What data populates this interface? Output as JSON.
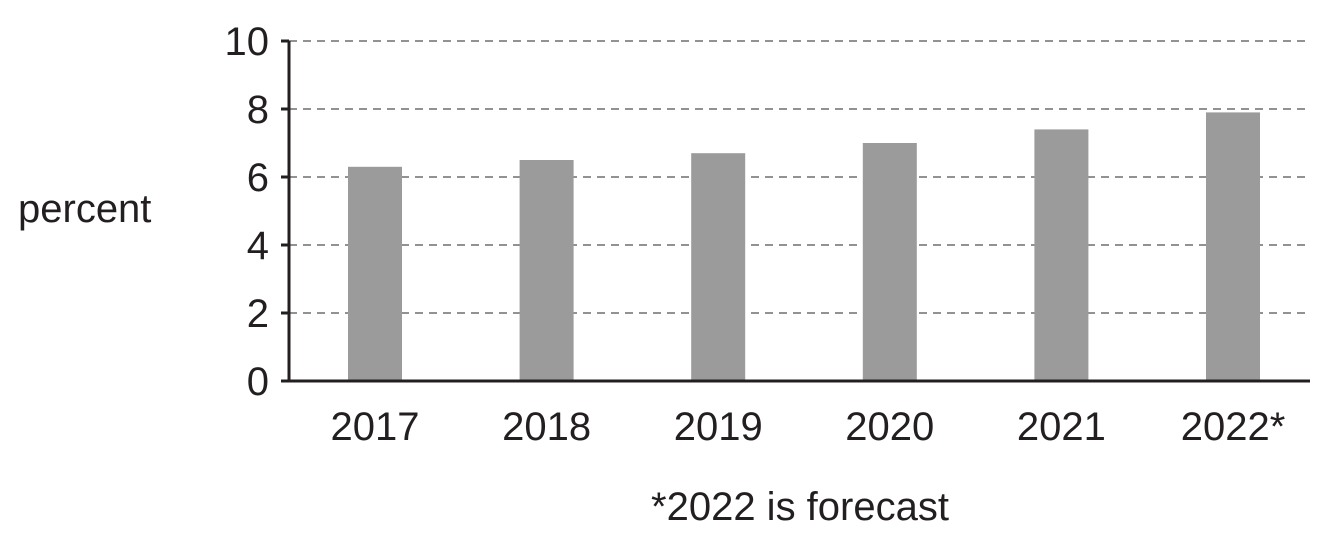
{
  "chart_data": {
    "type": "bar",
    "categories": [
      "2017",
      "2018",
      "2019",
      "2020",
      "2021",
      "2022*"
    ],
    "values": [
      6.3,
      6.5,
      6.7,
      7.0,
      7.4,
      7.9
    ],
    "ylabel": "percent",
    "xlabel": "",
    "ylim": [
      0,
      10
    ],
    "yticks": [
      "0",
      "2",
      "4",
      "6",
      "8",
      "10"
    ],
    "grid": true,
    "note": "*2022 is forecast",
    "bar_color": "#9b9b9b",
    "axis_color": "#231f20",
    "grid_color": "#6d6e71"
  }
}
